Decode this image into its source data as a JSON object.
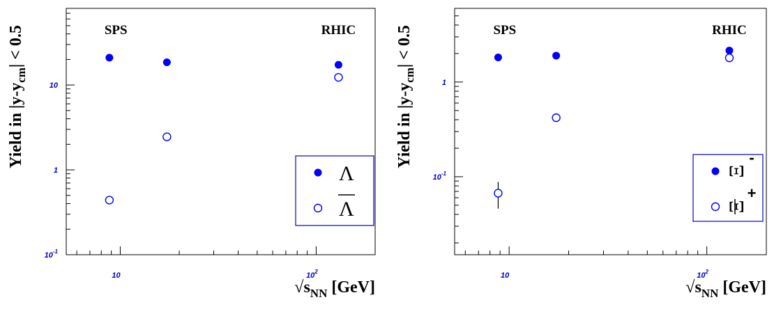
{
  "chart_data": [
    {
      "type": "scatter",
      "xscale": "log",
      "yscale": "log",
      "xlim": [
        5.3,
        200
      ],
      "ylim": [
        0.1,
        80
      ],
      "x_ticks": [
        {
          "base": "10",
          "exp": "",
          "value": 10
        },
        {
          "base": "10",
          "exp": "2",
          "value": 100
        }
      ],
      "y_ticks": [
        {
          "base": "10",
          "exp": "-1",
          "value": 0.1
        },
        {
          "base": "1",
          "exp": "",
          "value": 1
        },
        {
          "base": "10",
          "exp": "",
          "value": 10
        }
      ],
      "ylabel": {
        "main": "Yield in |y-y",
        "sub": "cm",
        "tail": "| < 0.5"
      },
      "xlabel": {
        "root": "√s",
        "sub": "NN",
        "tail": "  [GeV]"
      },
      "region_labels": [
        {
          "text": "SPS",
          "x": 9.5
        },
        {
          "text": "RHIC",
          "x": 130
        }
      ],
      "legend_position": "bottom-right",
      "series": [
        {
          "name": "Λ",
          "overbar": false,
          "marker": "filled-circle",
          "color": "#0000ff",
          "points": [
            {
              "x": 8.8,
              "y": 21
            },
            {
              "x": 17.3,
              "y": 18.5
            },
            {
              "x": 130,
              "y": 17.3
            }
          ]
        },
        {
          "name": "Λ",
          "overbar": true,
          "marker": "open-circle",
          "color": "#0000ff",
          "points": [
            {
              "x": 8.8,
              "y": 0.44
            },
            {
              "x": 17.3,
              "y": 2.45
            },
            {
              "x": 130,
              "y": 12.3
            }
          ]
        }
      ]
    },
    {
      "type": "scatter",
      "xscale": "log",
      "yscale": "log",
      "xlim": [
        5.3,
        200
      ],
      "ylim": [
        0.015,
        6
      ],
      "x_ticks": [
        {
          "base": "10",
          "exp": "",
          "value": 10
        },
        {
          "base": "10",
          "exp": "2",
          "value": 100
        }
      ],
      "y_ticks": [
        {
          "base": "10",
          "exp": "-1",
          "value": 0.1
        },
        {
          "base": "1",
          "exp": "",
          "value": 1
        }
      ],
      "ylabel": {
        "main": "Yield in |y-y",
        "sub": "cm",
        "tail": "| < 0.5"
      },
      "xlabel": {
        "root": "√s",
        "sub": "NN",
        "tail": "  [GeV]"
      },
      "region_labels": [
        {
          "text": "SPS",
          "x": 9.5
        },
        {
          "text": "RHIC",
          "x": 130
        }
      ],
      "legend_position": "bottom-right",
      "series": [
        {
          "name": "Ξ",
          "charge": "-",
          "overbar": false,
          "marker": "filled-circle",
          "color": "#0000ff",
          "points": [
            {
              "x": 8.8,
              "y": 1.82
            },
            {
              "x": 17.3,
              "y": 1.9
            },
            {
              "x": 130,
              "y": 2.15
            }
          ]
        },
        {
          "name": "Ξ",
          "charge": "+",
          "overbar": true,
          "marker": "open-circle",
          "color": "#0000ff",
          "points": [
            {
              "x": 8.8,
              "y": 0.067,
              "yerr_low": 0.046,
              "yerr_high": 0.088
            },
            {
              "x": 17.3,
              "y": 0.42
            },
            {
              "x": 130,
              "y": 1.8
            }
          ]
        }
      ]
    }
  ]
}
